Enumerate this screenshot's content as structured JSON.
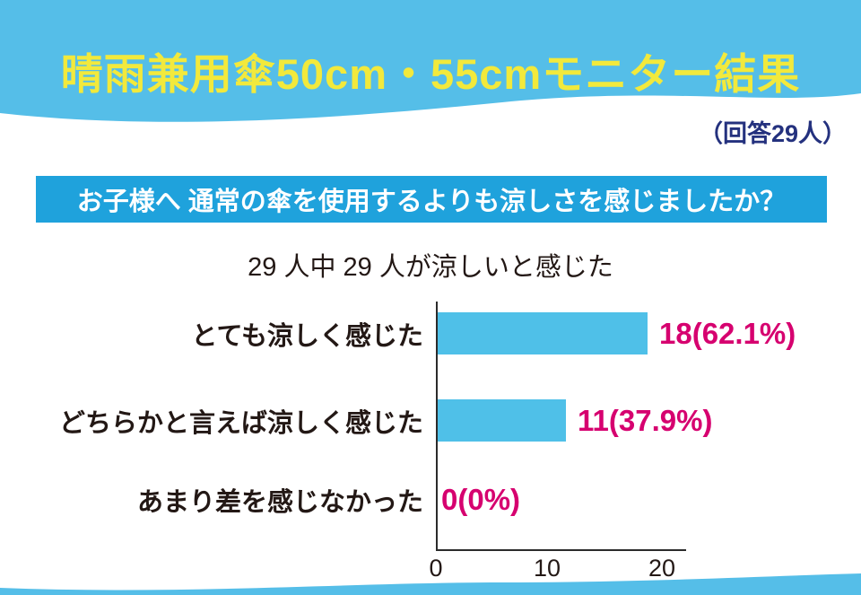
{
  "header": {
    "title": "晴雨兼用傘50cm・55cmモニター結果",
    "respondents_note": "（回答29人）",
    "banner_color": "#55BEE8",
    "title_color": "#F2E93C",
    "note_color": "#24317E"
  },
  "question": {
    "text": "お子様へ 通常の傘を使用するよりも涼しさを感じましたか？",
    "bg_color": "#1FA2DC",
    "text_color": "#FFFFFF"
  },
  "chart_data": {
    "type": "bar",
    "orientation": "horizontal",
    "title": "29 人中 29 人が涼しいと感じた",
    "categories": [
      "とても涼しく感じた",
      "どちらかと言えば涼しく感じた",
      "あまり差を感じなかった"
    ],
    "values": [
      18,
      11,
      0
    ],
    "value_labels": [
      "18(62.1%)",
      "11(37.9%)",
      "0(0%)"
    ],
    "x_ticks": [
      "0",
      "10",
      "20"
    ],
    "xlim": [
      0,
      22
    ],
    "grid": false,
    "legend": false,
    "bar_color": "#4FC0E8",
    "value_label_color": "#D6006F",
    "axis_color": "#2B2B2B"
  }
}
